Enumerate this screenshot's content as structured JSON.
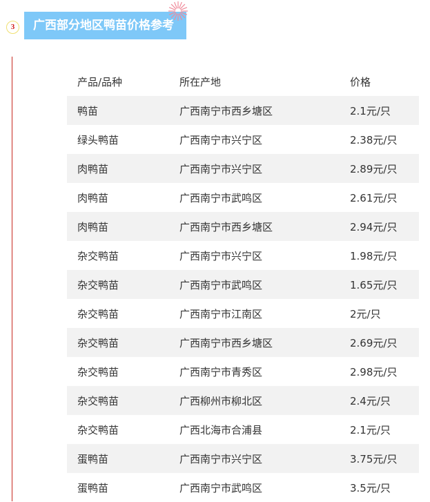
{
  "section": {
    "number": "3",
    "title": "广西部分地区鸭苗价格参考",
    "accent": "#7ec8f8",
    "line_color": "#c8281e"
  },
  "table": {
    "headers": [
      "产品/品种",
      "所在产地",
      "价格"
    ],
    "rows": [
      [
        "鸭苗",
        "广西南宁市西乡塘区",
        "2.1元/只"
      ],
      [
        "绿头鸭苗",
        "广西南宁市兴宁区",
        "2.38元/只"
      ],
      [
        "肉鸭苗",
        "广西南宁市兴宁区",
        "2.89元/只"
      ],
      [
        "肉鸭苗",
        "广西南宁市武鸣区",
        "2.61元/只"
      ],
      [
        "肉鸭苗",
        "广西南宁市西乡塘区",
        "2.94元/只"
      ],
      [
        "杂交鸭苗",
        "广西南宁市兴宁区",
        "1.98元/只"
      ],
      [
        "杂交鸭苗",
        "广西南宁市武鸣区",
        "1.65元/只"
      ],
      [
        "杂交鸭苗",
        "广西南宁市江南区",
        "2元/只"
      ],
      [
        "杂交鸭苗",
        "广西南宁市西乡塘区",
        "2.69元/只"
      ],
      [
        "杂交鸭苗",
        "广西南宁市青秀区",
        "2.98元/只"
      ],
      [
        "杂交鸭苗",
        "广西柳州市柳北区",
        "2.4元/只"
      ],
      [
        "杂交鸭苗",
        "广西北海市合浦县",
        "2.1元/只"
      ],
      [
        "蛋鸭苗",
        "广西南宁市兴宁区",
        "3.75元/只"
      ],
      [
        "蛋鸭苗",
        "广西南宁市武鸣区",
        "3.5元/只"
      ]
    ]
  }
}
